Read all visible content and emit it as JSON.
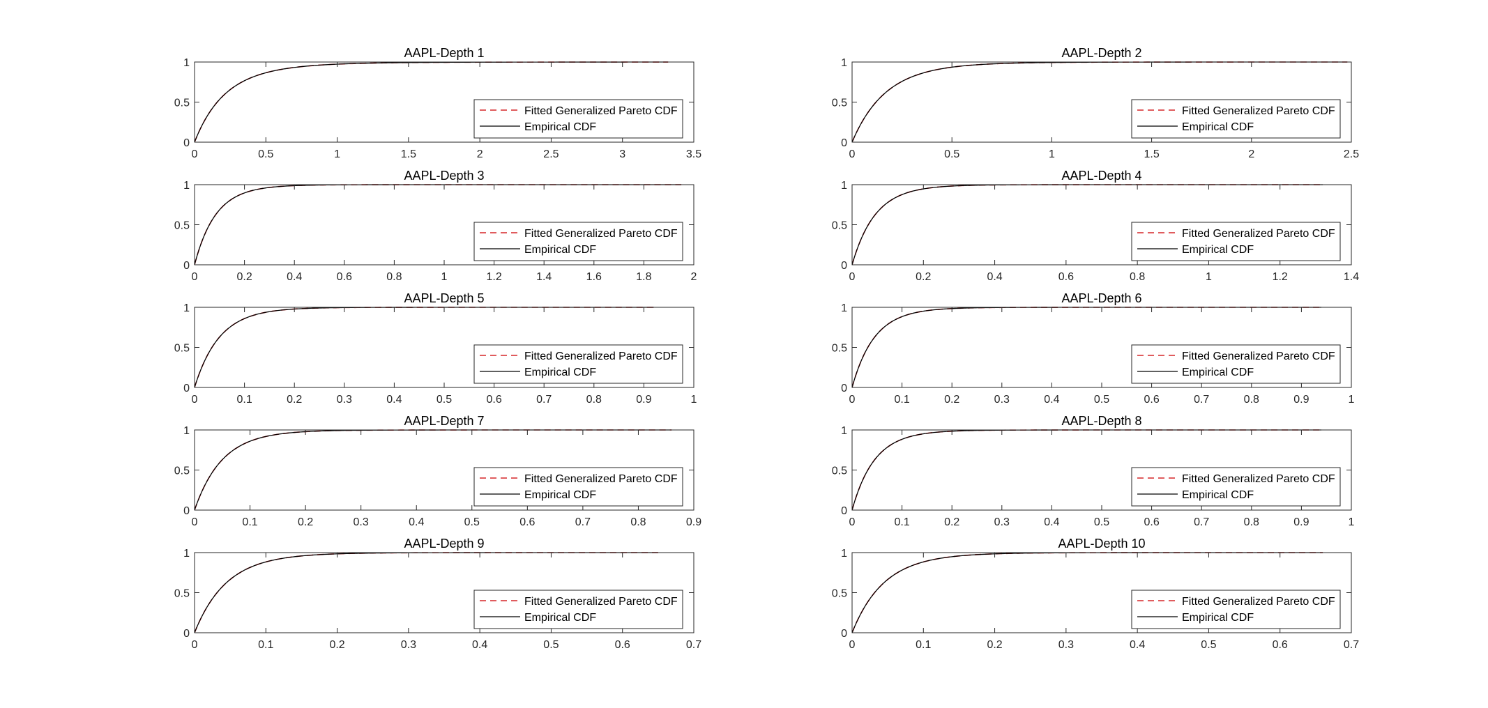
{
  "figure": {
    "colors": {
      "fitted": "#d62728",
      "empirical": "#000000",
      "axes": "#262626"
    },
    "legend": {
      "fitted_label": "Fitted Generalized Pareto CDF",
      "empirical_label": "Empirical CDF",
      "placement": "lower-right"
    }
  },
  "chart_data": [
    {
      "type": "line",
      "title": "AAPL-Depth 1",
      "xlim": [
        0,
        3.5
      ],
      "ylim": [
        0,
        1
      ],
      "xticks": [
        0,
        0.5,
        1,
        1.5,
        2,
        2.5,
        3,
        3.5
      ],
      "yticks": [
        0,
        0.5,
        1
      ],
      "series": [
        {
          "name": "Fitted Generalized Pareto CDF",
          "style": "dashed",
          "gpd": {
            "scale": 0.22,
            "shape": 0.12,
            "xmax": 3.32
          }
        },
        {
          "name": "Empirical CDF",
          "style": "solid",
          "gpd": {
            "scale": 0.22,
            "shape": 0.12,
            "xmax": 3.32
          }
        }
      ]
    },
    {
      "type": "line",
      "title": "AAPL-Depth 2",
      "xlim": [
        0,
        2.5
      ],
      "ylim": [
        0,
        1
      ],
      "xticks": [
        0,
        0.5,
        1,
        1.5,
        2,
        2.5
      ],
      "yticks": [
        0,
        0.5,
        1
      ],
      "series": [
        {
          "name": "Fitted Generalized Pareto CDF",
          "style": "dashed",
          "gpd": {
            "scale": 0.17,
            "shape": 0.05,
            "xmax": 2.48
          }
        },
        {
          "name": "Empirical CDF",
          "style": "solid",
          "gpd": {
            "scale": 0.17,
            "shape": 0.05,
            "xmax": 2.48
          }
        }
      ]
    },
    {
      "type": "line",
      "title": "AAPL-Depth 3",
      "xlim": [
        0,
        2
      ],
      "ylim": [
        0,
        1
      ],
      "xticks": [
        0,
        0.2,
        0.4,
        0.6,
        0.8,
        1,
        1.2,
        1.4,
        1.6,
        1.8,
        2
      ],
      "yticks": [
        0,
        0.5,
        1
      ],
      "series": [
        {
          "name": "Fitted Generalized Pareto CDF",
          "style": "dashed",
          "gpd": {
            "scale": 0.085,
            "shape": 0.03,
            "xmax": 1.95
          }
        },
        {
          "name": "Empirical CDF",
          "style": "solid",
          "gpd": {
            "scale": 0.085,
            "shape": 0.03,
            "xmax": 1.95
          }
        }
      ]
    },
    {
      "type": "line",
      "title": "AAPL-Depth 4",
      "xlim": [
        0,
        1.4
      ],
      "ylim": [
        0,
        1
      ],
      "xticks": [
        0,
        0.2,
        0.4,
        0.6,
        0.8,
        1,
        1.2,
        1.4
      ],
      "yticks": [
        0,
        0.5,
        1
      ],
      "series": [
        {
          "name": "Fitted Generalized Pareto CDF",
          "style": "dashed",
          "gpd": {
            "scale": 0.065,
            "shape": 0.03,
            "xmax": 1.32
          }
        },
        {
          "name": "Empirical CDF",
          "style": "solid",
          "gpd": {
            "scale": 0.065,
            "shape": 0.03,
            "xmax": 1.32
          }
        }
      ]
    },
    {
      "type": "line",
      "title": "AAPL-Depth 5",
      "xlim": [
        0,
        1
      ],
      "ylim": [
        0,
        1
      ],
      "xticks": [
        0,
        0.1,
        0.2,
        0.3,
        0.4,
        0.5,
        0.6,
        0.7,
        0.8,
        0.9,
        1
      ],
      "yticks": [
        0,
        0.5,
        1
      ],
      "series": [
        {
          "name": "Fitted Generalized Pareto CDF",
          "style": "dashed",
          "gpd": {
            "scale": 0.05,
            "shape": 0.02,
            "xmax": 0.92
          }
        },
        {
          "name": "Empirical CDF",
          "style": "solid",
          "gpd": {
            "scale": 0.05,
            "shape": 0.02,
            "xmax": 0.92
          }
        }
      ]
    },
    {
      "type": "line",
      "title": "AAPL-Depth 6",
      "xlim": [
        0,
        1
      ],
      "ylim": [
        0,
        1
      ],
      "xticks": [
        0,
        0.1,
        0.2,
        0.3,
        0.4,
        0.5,
        0.6,
        0.7,
        0.8,
        0.9,
        1
      ],
      "yticks": [
        0,
        0.5,
        1
      ],
      "series": [
        {
          "name": "Fitted Generalized Pareto CDF",
          "style": "dashed",
          "gpd": {
            "scale": 0.045,
            "shape": 0.03,
            "xmax": 0.94
          }
        },
        {
          "name": "Empirical CDF",
          "style": "solid",
          "gpd": {
            "scale": 0.045,
            "shape": 0.03,
            "xmax": 0.94
          }
        }
      ]
    },
    {
      "type": "line",
      "title": "AAPL-Depth 7",
      "xlim": [
        0,
        0.9
      ],
      "ylim": [
        0,
        1
      ],
      "xticks": [
        0,
        0.1,
        0.2,
        0.3,
        0.4,
        0.5,
        0.6,
        0.7,
        0.8,
        0.9
      ],
      "yticks": [
        0,
        0.5,
        1
      ],
      "series": [
        {
          "name": "Fitted Generalized Pareto CDF",
          "style": "dashed",
          "gpd": {
            "scale": 0.05,
            "shape": 0.02,
            "xmax": 0.86
          }
        },
        {
          "name": "Empirical CDF",
          "style": "solid",
          "gpd": {
            "scale": 0.05,
            "shape": 0.02,
            "xmax": 0.86
          }
        }
      ]
    },
    {
      "type": "line",
      "title": "AAPL-Depth 8",
      "xlim": [
        0,
        1
      ],
      "ylim": [
        0,
        1
      ],
      "xticks": [
        0,
        0.1,
        0.2,
        0.3,
        0.4,
        0.5,
        0.6,
        0.7,
        0.8,
        0.9,
        1
      ],
      "yticks": [
        0,
        0.5,
        1
      ],
      "series": [
        {
          "name": "Fitted Generalized Pareto CDF",
          "style": "dashed",
          "gpd": {
            "scale": 0.045,
            "shape": 0.03,
            "xmax": 0.94
          }
        },
        {
          "name": "Empirical CDF",
          "style": "solid",
          "gpd": {
            "scale": 0.045,
            "shape": 0.03,
            "xmax": 0.94
          }
        }
      ]
    },
    {
      "type": "line",
      "title": "AAPL-Depth 9",
      "xlim": [
        0,
        0.7
      ],
      "ylim": [
        0,
        1
      ],
      "xticks": [
        0,
        0.1,
        0.2,
        0.3,
        0.4,
        0.5,
        0.6,
        0.7
      ],
      "yticks": [
        0,
        0.5,
        1
      ],
      "series": [
        {
          "name": "Fitted Generalized Pareto CDF",
          "style": "dashed",
          "gpd": {
            "scale": 0.045,
            "shape": 0.03,
            "xmax": 0.65
          }
        },
        {
          "name": "Empirical CDF",
          "style": "solid",
          "gpd": {
            "scale": 0.045,
            "shape": 0.03,
            "xmax": 0.65
          }
        }
      ]
    },
    {
      "type": "line",
      "title": "AAPL-Depth 10",
      "xlim": [
        0,
        0.7
      ],
      "ylim": [
        0,
        1
      ],
      "xticks": [
        0,
        0.1,
        0.2,
        0.3,
        0.4,
        0.5,
        0.6,
        0.7
      ],
      "yticks": [
        0,
        0.5,
        1
      ],
      "series": [
        {
          "name": "Fitted Generalized Pareto CDF",
          "style": "dashed",
          "gpd": {
            "scale": 0.045,
            "shape": 0.03,
            "xmax": 0.66
          }
        },
        {
          "name": "Empirical CDF",
          "style": "solid",
          "gpd": {
            "scale": 0.045,
            "shape": 0.03,
            "xmax": 0.66
          }
        }
      ]
    }
  ]
}
